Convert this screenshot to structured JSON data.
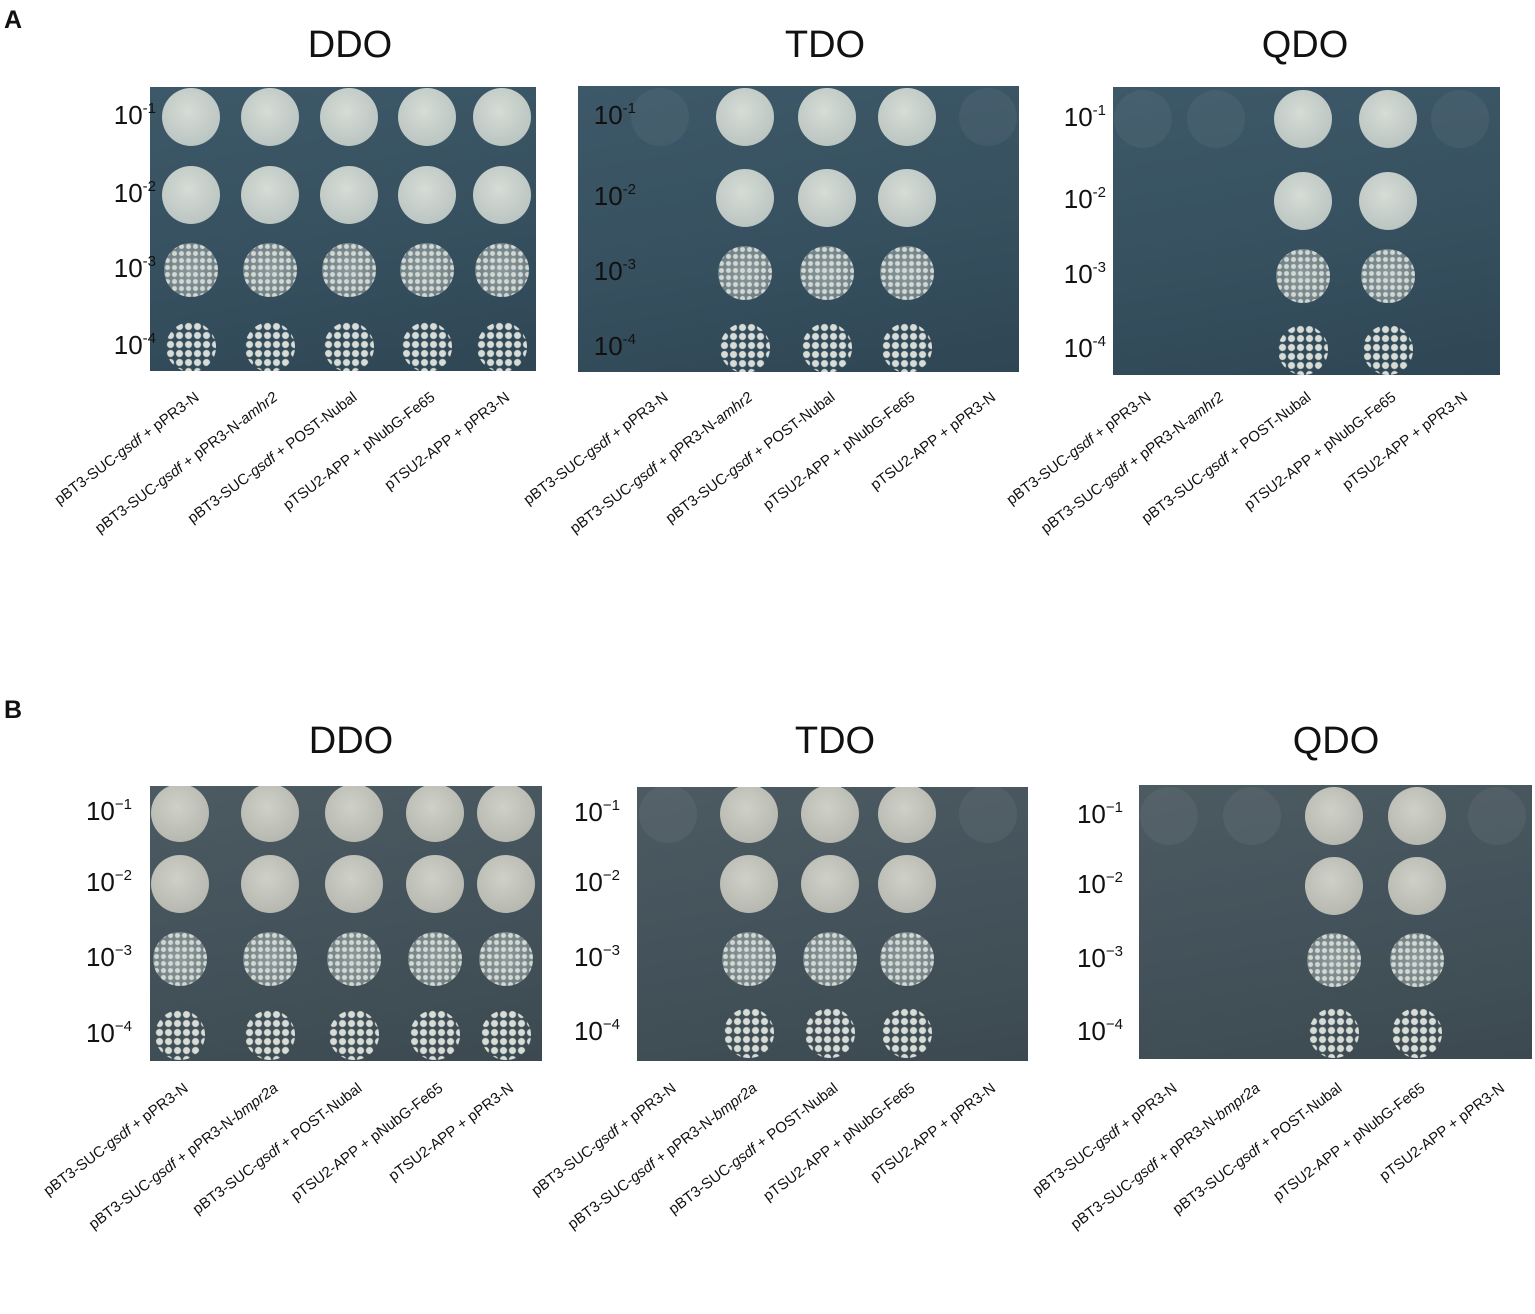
{
  "panels": [
    {
      "letter": "A",
      "media": [
        {
          "title": "DDO",
          "growth": [
            4,
            4,
            4,
            4,
            4
          ],
          "tone": "blue"
        },
        {
          "title": "TDO",
          "growth": [
            0,
            4,
            4,
            4,
            0
          ],
          "tone": "blue"
        },
        {
          "title": "QDO",
          "growth": [
            0,
            0,
            4,
            4,
            0
          ],
          "tone": "blue"
        }
      ],
      "dilutions": [
        "10",
        "10",
        "10",
        "10"
      ],
      "exponents": [
        "-1",
        "-2",
        "-3",
        "-4"
      ],
      "strains": [
        {
          "a": "pBT3-SUC-",
          "g": "gsdf",
          "b": " + pPR3-N",
          "c": ""
        },
        {
          "a": "pBT3-SUC-",
          "g": "gsdf",
          "b": " + pPR3-N-",
          "c": "amhr2"
        },
        {
          "a": "pBT3-SUC-",
          "g": "gsdf",
          "b": " + POST-Nubal",
          "c": ""
        },
        {
          "a": "pTSU2-APP + pNubG-Fe65",
          "g": "",
          "b": "",
          "c": ""
        },
        {
          "a": "pTSU2-APP + pPR3-N",
          "g": "",
          "b": "",
          "c": ""
        }
      ]
    },
    {
      "letter": "B",
      "media": [
        {
          "title": "DDO",
          "growth": [
            4,
            4,
            4,
            4,
            4
          ],
          "tone": "grey"
        },
        {
          "title": "TDO",
          "growth": [
            0,
            4,
            4,
            4,
            0
          ],
          "tone": "grey"
        },
        {
          "title": "QDO",
          "growth": [
            0,
            0,
            4,
            4,
            0
          ],
          "tone": "grey"
        }
      ],
      "dilutions": [
        "10",
        "10",
        "10",
        "10"
      ],
      "exponents": [
        "−1",
        "−2",
        "−3",
        "−4"
      ],
      "strains": [
        {
          "a": "pBT3-SUC-",
          "g": "gsdf",
          "b": " + pPR3-N",
          "c": ""
        },
        {
          "a": "pBT3-SUC-",
          "g": "gsdf",
          "b": " + pPR3-N-",
          "c": "bmpr2a"
        },
        {
          "a": "pBT3-SUC-",
          "g": "gsdf",
          "b": " + POST-Nubal",
          "c": ""
        },
        {
          "a": "pTSU2-APP + pNubG-Fe65",
          "g": "",
          "b": "",
          "c": ""
        },
        {
          "a": "pTSU2-APP + pPR3-N",
          "g": "",
          "b": "",
          "c": ""
        }
      ]
    }
  ]
}
